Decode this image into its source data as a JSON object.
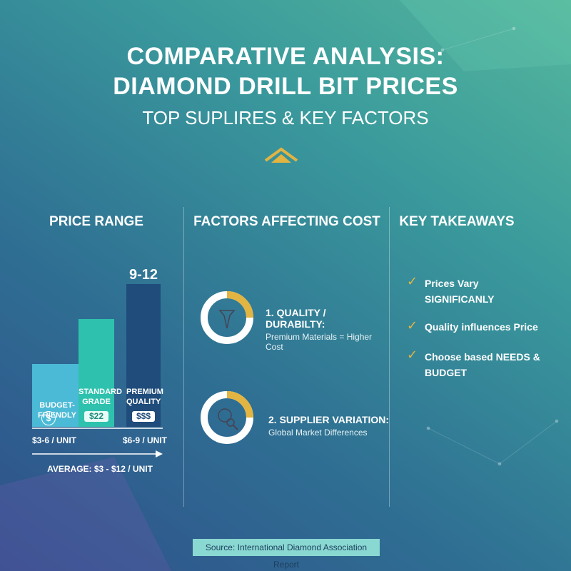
{
  "header": {
    "title_line1": "COMPARATIVE ANALYSIS:",
    "title_line2": "DIAMOND DRILL BIT PRICES",
    "subtitle": "TOP SUPLIRES & KEY FACTORS"
  },
  "price_range": {
    "heading": "PRICE RANGE",
    "top_label": "9-12",
    "tiers": [
      {
        "label": "BUDGET-FRIENDLY",
        "badge": "$"
      },
      {
        "label": "STANDARD GRADE",
        "badge": "$22"
      },
      {
        "label": "PREMIUM QUALITY",
        "badge": "$$$"
      }
    ],
    "axis_labels": [
      "$3-6 / UNIT",
      "$6-9 / UNIT"
    ],
    "average": "AVERAGE: $3 - $12 / UNIT"
  },
  "factors": {
    "heading": "FACTORS AFFECTING COST",
    "items": [
      {
        "title": "1. QUALITY / DURABILTY:",
        "text": "Premium Materials = Higher Cost"
      },
      {
        "title": "2. SUPPLIER VARIATION:",
        "text": "Global Market Differences"
      }
    ]
  },
  "takeaways": {
    "heading": "KEY TAKEAWAYS",
    "items": [
      "Prices Vary SIGNIFICANLY",
      "Quality influences Price",
      "Choose based NEEDS & BUDGET"
    ]
  },
  "source": "Source: International Diamond Association Report"
}
